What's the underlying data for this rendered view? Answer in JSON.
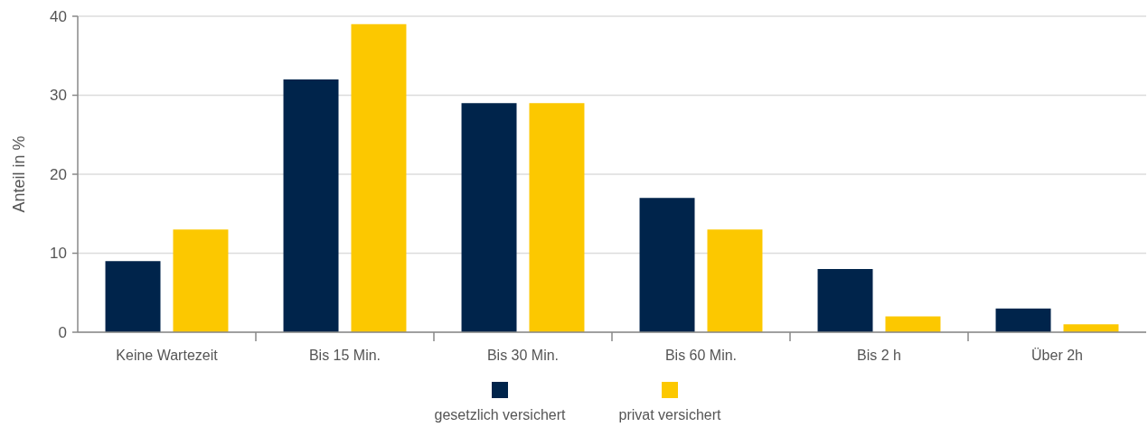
{
  "chart_data": {
    "type": "bar",
    "ylabel": "Anteil in %",
    "categories": [
      "Keine Wartezeit",
      "Bis 15 Min.",
      "Bis 30 Min.",
      "Bis 60 Min.",
      "Bis 2 h",
      "Über 2h"
    ],
    "series": [
      {
        "name": "gesetzlich versichert",
        "color": "#00244b",
        "values": [
          9,
          32,
          29,
          17,
          8,
          3
        ]
      },
      {
        "name": "privat versichert",
        "color": "#fcc800",
        "values": [
          13,
          39,
          29,
          13,
          2,
          1
        ]
      }
    ],
    "ylim": [
      0,
      40
    ],
    "yticks": [
      0,
      10,
      20,
      30,
      40
    ],
    "grid": "y",
    "legend": "bottom"
  }
}
